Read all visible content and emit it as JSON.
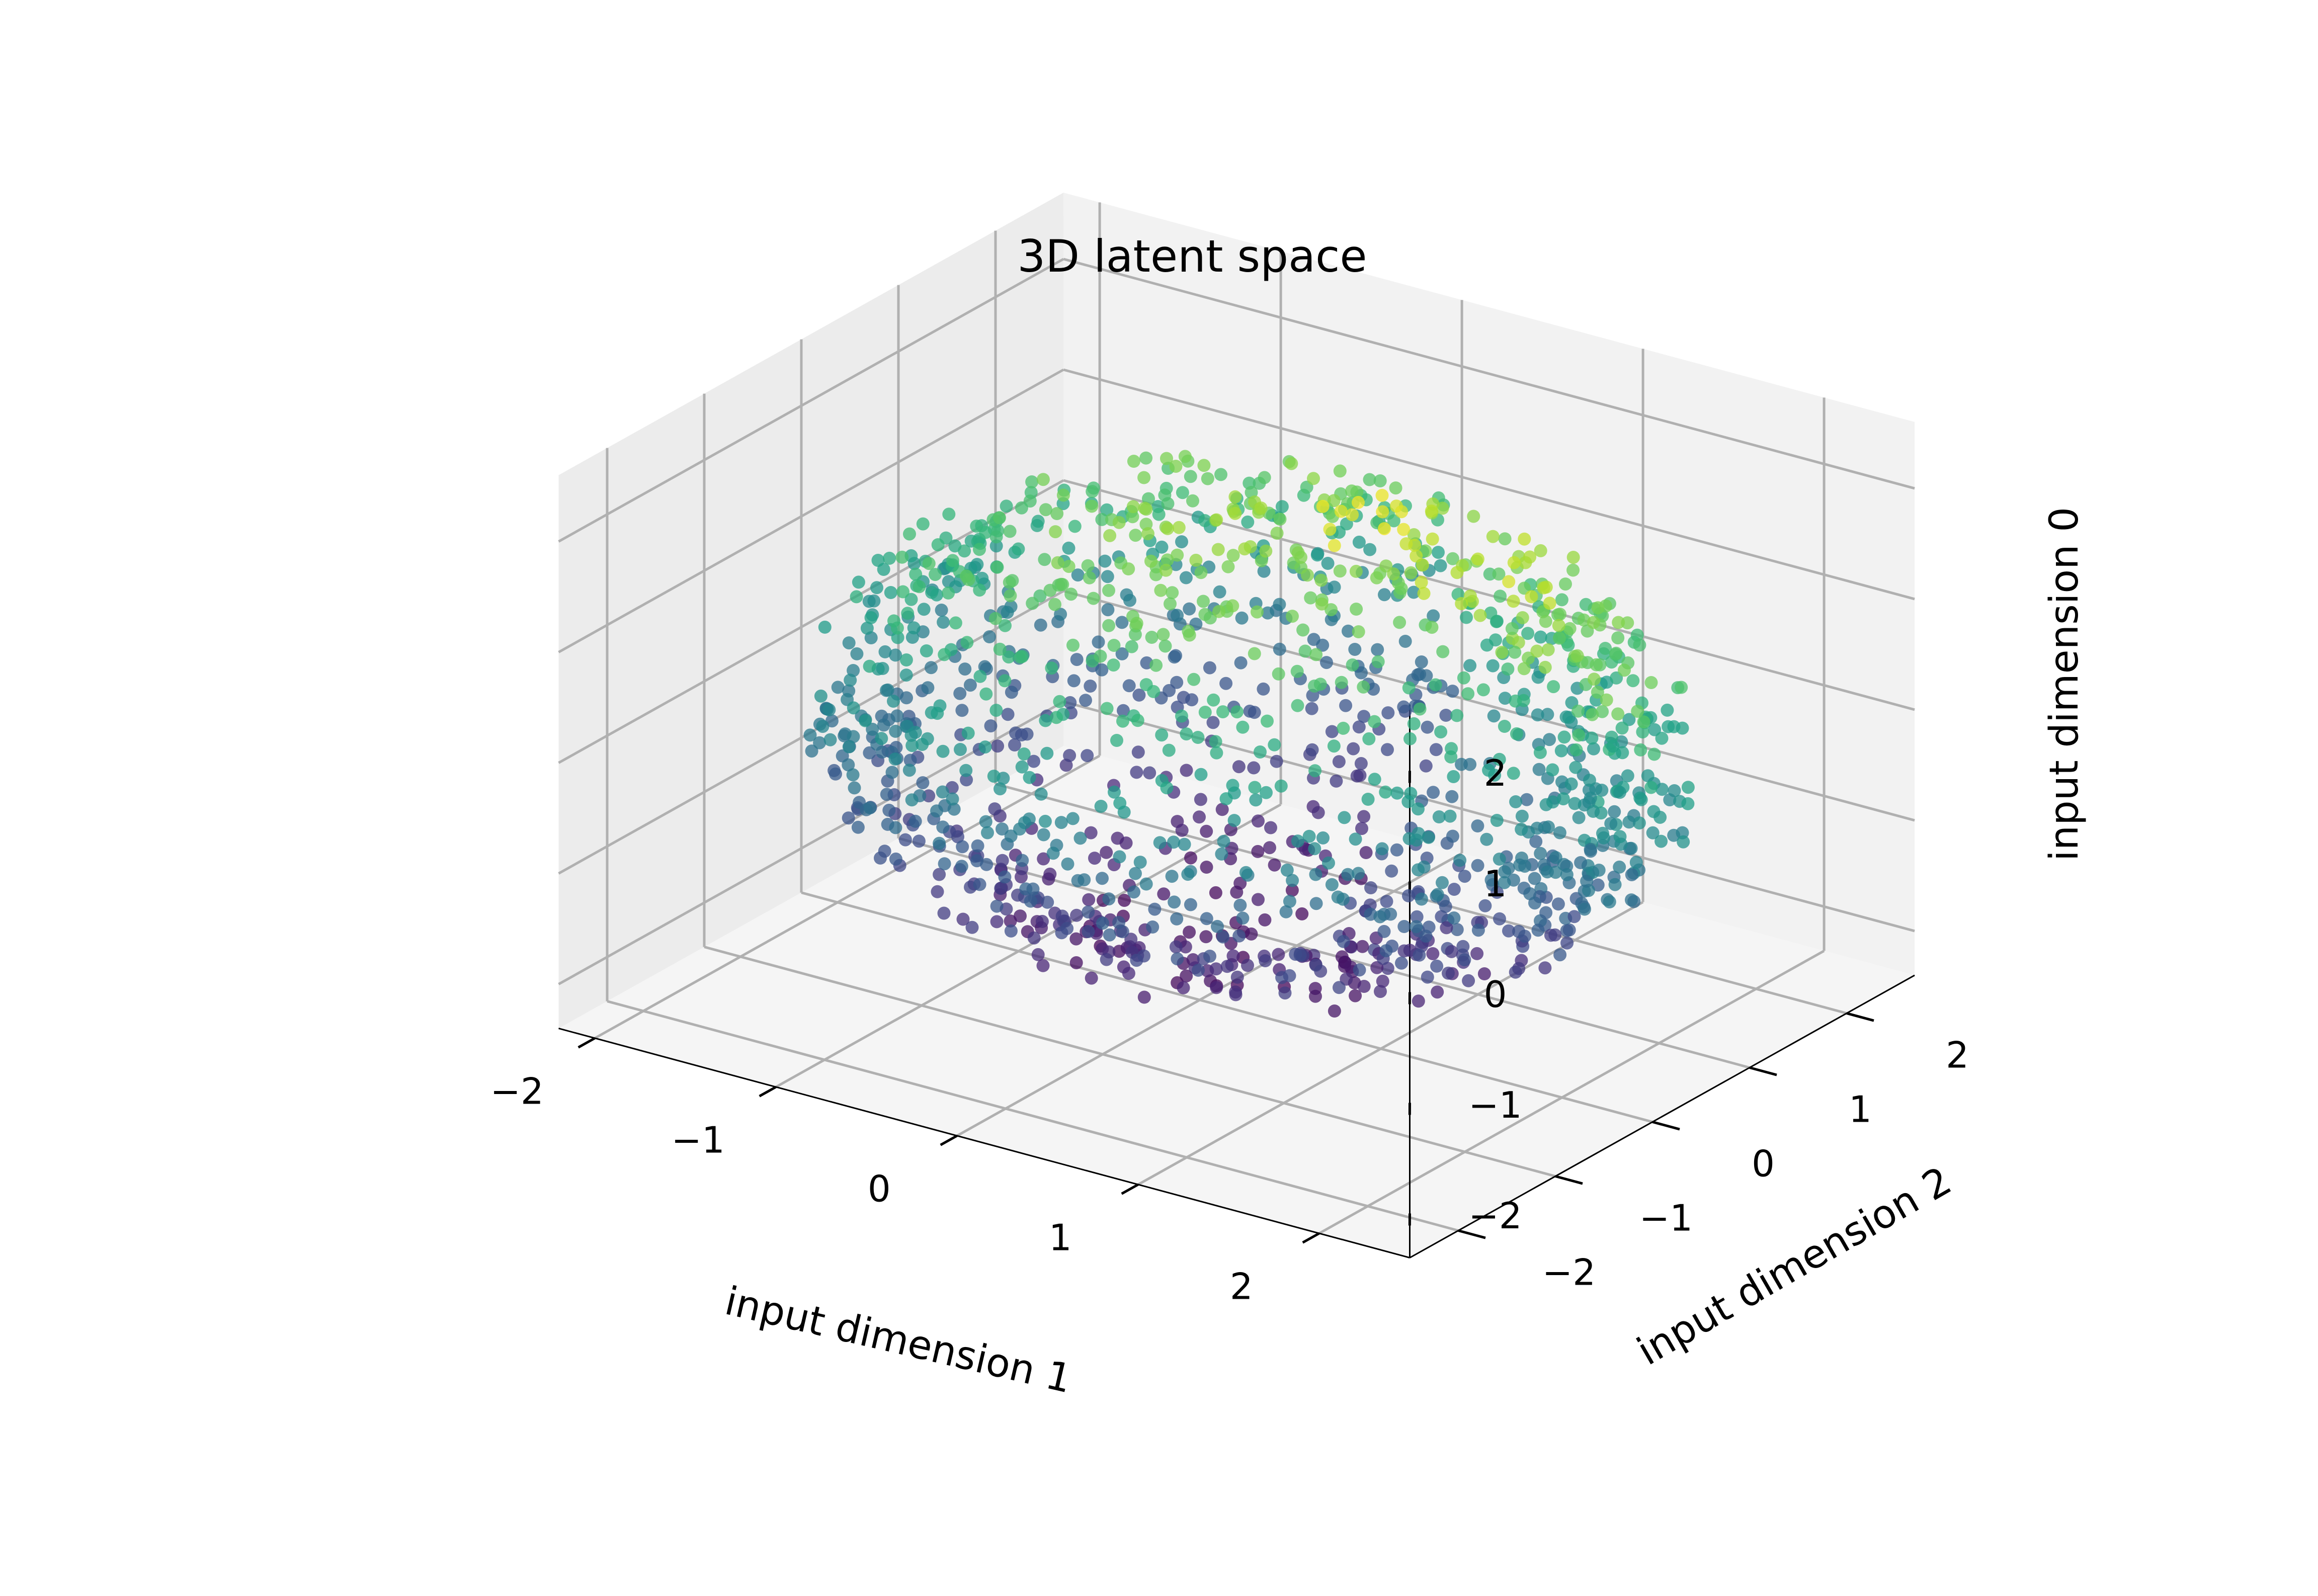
{
  "chart_data": {
    "type": "scatter",
    "projection": "3d",
    "title": "3D latent space",
    "xlabel": "input dimension 1",
    "ylabel": "input dimension 2",
    "zlabel": "input dimension 0",
    "xlim": [
      -2.2,
      2.5
    ],
    "ylim": [
      -2.5,
      2.7
    ],
    "zlim": [
      -2.4,
      2.6
    ],
    "xticks": [
      -2,
      -1,
      0,
      1,
      2
    ],
    "yticks": [
      -2,
      -1,
      0,
      1,
      2
    ],
    "zticks": [
      -2,
      -1,
      0,
      1,
      2
    ],
    "xtick_labels": [
      "−2",
      "−1",
      "0",
      "1",
      "2"
    ],
    "ytick_labels": [
      "−2",
      "−1",
      "0",
      "1",
      "2"
    ],
    "ztick_labels": [
      "−2",
      "−1",
      "0",
      "1",
      "2"
    ],
    "grid": true,
    "colormap": "viridis",
    "color_by": "input dimension 0",
    "marker_alpha": 0.6,
    "pane_color": "#f2f2f2",
    "grid_color": "#b0b0b0",
    "shape": "ellipsoidal shell",
    "approx_point_count": 1500,
    "extent": {
      "x": [
        -1.9,
        2.3
      ],
      "y": [
        -2.0,
        2.4
      ],
      "z": [
        -2.0,
        2.0
      ]
    }
  }
}
